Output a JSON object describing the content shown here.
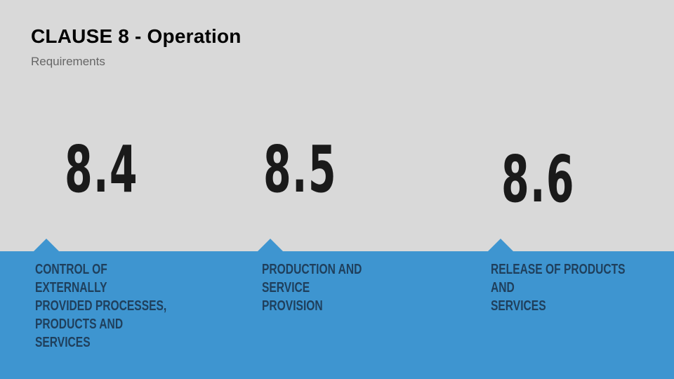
{
  "slide": {
    "title": "CLAUSE 8 - Operation",
    "subtitle": "Requirements"
  },
  "sections": [
    {
      "number": "8.4",
      "caption": "CONTROL OF EXTERNALLY\nPROVIDED PROCESSES,\nPRODUCTS AND SERVICES"
    },
    {
      "number": "8.5",
      "caption": "PRODUCTION AND SERVICE\nPROVISION"
    },
    {
      "number": "8.6",
      "caption": "RELEASE OF PRODUCTS AND\nSERVICES"
    }
  ],
  "colors": {
    "background": "#d9d9d9",
    "band": "#3e95d0",
    "number_text": "#1a1a1a",
    "caption_text": "#1f3f5c"
  }
}
